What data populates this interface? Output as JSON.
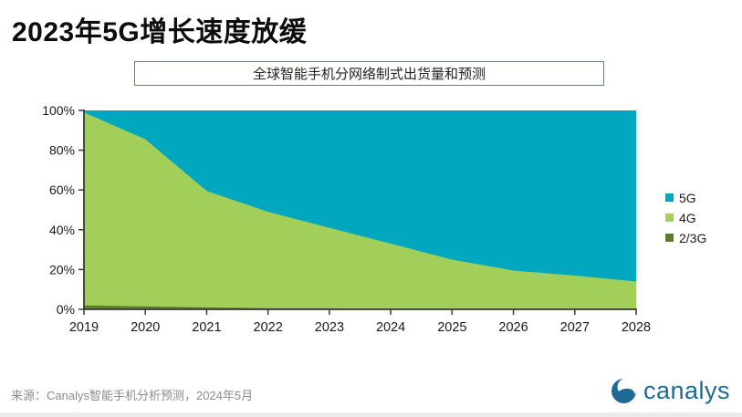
{
  "title": "2023年5G增长速度放缓",
  "subtitle": "全球智能手机分网络制式出货量和预测",
  "source": "来源：Canalys智能手机分析预测，2024年5月",
  "logo": {
    "text": "canalys"
  },
  "colors": {
    "teal_5g": "#00a7bf",
    "green_4g": "#a2cf5a",
    "olive_23g": "#5f7d2e",
    "logo_blue": "#1f6a94",
    "subtitle_border": "#4d88ad",
    "axis": "#3a3a3a"
  },
  "chart_data": {
    "type": "area",
    "stacked": true,
    "title": "全球智能手机分网络制式出货量和预测",
    "x": [
      2019,
      2020,
      2021,
      2022,
      2023,
      2024,
      2025,
      2026,
      2027,
      2028
    ],
    "series": [
      {
        "name": "5G",
        "color": "#00a7bf",
        "values": [
          1,
          14.5,
          40.5,
          51,
          59,
          67,
          75,
          80.5,
          83,
          86
        ]
      },
      {
        "name": "4G",
        "color": "#a2cf5a",
        "values": [
          97,
          84,
          58.5,
          48.4,
          40.5,
          32.7,
          24.7,
          19.3,
          16.8,
          13.9
        ]
      },
      {
        "name": "2/3G",
        "color": "#5f7d2e",
        "values": [
          2,
          1.5,
          1,
          0.6,
          0.5,
          0.3,
          0.3,
          0.2,
          0.2,
          0.1
        ]
      }
    ],
    "ylim": [
      0,
      100
    ],
    "yticks": [
      "0%",
      "20%",
      "40%",
      "60%",
      "80%",
      "100%"
    ],
    "grid": false,
    "legend_position": "right",
    "unit": "percent share"
  }
}
